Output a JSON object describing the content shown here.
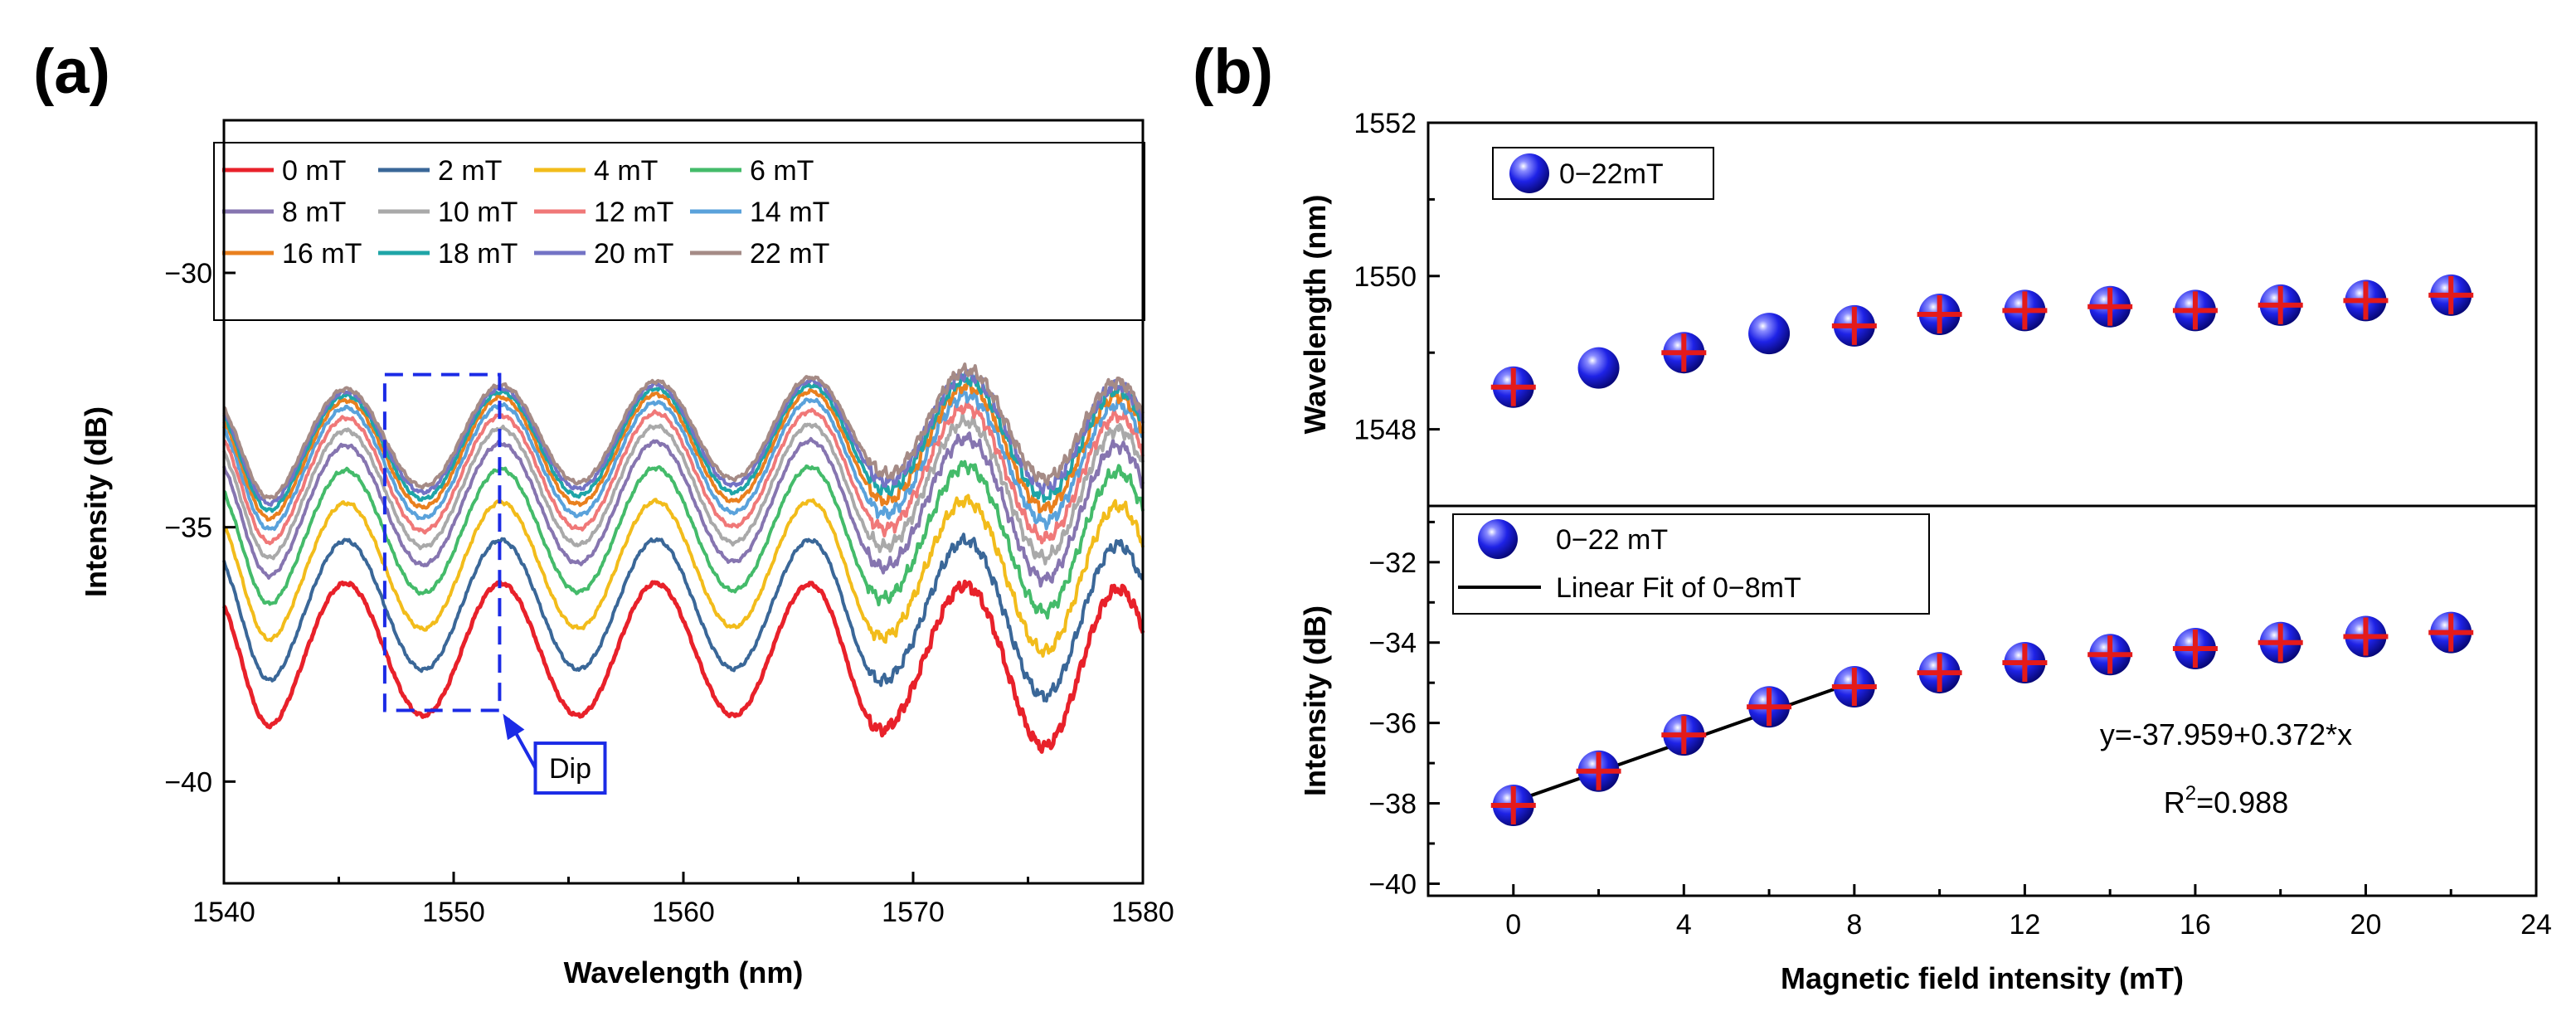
{
  "panel_a_label": "(a)",
  "panel_b_label": "(b)",
  "chart_data": [
    {
      "id": "a",
      "type": "line",
      "title": "",
      "xlabel": "Wavelength (nm)",
      "ylabel": "Intensity (dB)",
      "xlim": [
        1540,
        1580
      ],
      "ylim": [
        -42,
        -27
      ],
      "xticks": [
        1540,
        1550,
        1560,
        1570,
        1580
      ],
      "xtick_labels": [
        "1540",
        "1550",
        "1560",
        "1570",
        "1580"
      ],
      "yticks": [
        -40,
        -35,
        -30
      ],
      "ytick_labels": [
        "−40",
        "−35",
        "−30"
      ],
      "grid": false,
      "legend_position": "top",
      "dip_label": "Dip",
      "dip_box_x": [
        1547,
        1552
      ],
      "dip_box_y": [
        -38.6,
        -32
      ],
      "dip_arrow_to": [
        1552,
        -38.6
      ],
      "dip_label_at": [
        1555,
        -39.8
      ],
      "spectrum_model": {
        "x_range": [
          1540,
          1580
        ],
        "base_offset_0mT": -37.4,
        "dip_centers": [
          1541.6,
          1548.4,
          1555.0,
          1561.9,
          1568.7,
          1575.5
        ],
        "peak_centers": [
          1545.3,
          1551.8,
          1558.5,
          1565.3,
          1572.0,
          1578.8
        ]
      },
      "series": [
        {
          "name": "0 mT",
          "color": "#e8212a",
          "offset_db": 0.0
        },
        {
          "name": "2 mT",
          "color": "#3a6798",
          "offset_db": 0.9
        },
        {
          "name": "4 mT",
          "color": "#f2bc1b",
          "offset_db": 1.7
        },
        {
          "name": "6 mT",
          "color": "#44bb6a",
          "offset_db": 2.4
        },
        {
          "name": "8 mT",
          "color": "#8675b0",
          "offset_db": 2.95
        },
        {
          "name": "10 mT",
          "color": "#a9a9a9",
          "offset_db": 3.3
        },
        {
          "name": "12 mT",
          "color": "#f07878",
          "offset_db": 3.6
        },
        {
          "name": "14 mT",
          "color": "#5aa2db",
          "offset_db": 3.85
        },
        {
          "name": "16 mT",
          "color": "#e9801e",
          "offset_db": 4.05
        },
        {
          "name": "18 mT",
          "color": "#1ea5a7",
          "offset_db": 4.2
        },
        {
          "name": "20 mT",
          "color": "#7373c5",
          "offset_db": 4.32
        },
        {
          "name": "22 mT",
          "color": "#a58b86",
          "offset_db": 4.42
        }
      ]
    },
    {
      "id": "b-top",
      "type": "scatter",
      "title": "",
      "xlabel": "",
      "ylabel": "Wavelength (nm)",
      "xlim": [
        -2,
        24
      ],
      "ylim": [
        1547,
        1552
      ],
      "yticks": [
        1548,
        1550,
        1552
      ],
      "ytick_labels": [
        "1548",
        "1550",
        "1552"
      ],
      "legend_position": "top-left",
      "legend": [
        "0−22mT"
      ],
      "series": [
        {
          "name": "0−22mT",
          "color": "#1f1fe8",
          "x": [
            0,
            2,
            4,
            6,
            8,
            10,
            12,
            14,
            16,
            18,
            20,
            22
          ],
          "y": [
            1548.55,
            1548.8,
            1549.0,
            1549.25,
            1549.35,
            1549.5,
            1549.55,
            1549.6,
            1549.55,
            1549.62,
            1549.68,
            1549.75
          ],
          "error_bars": [
            true,
            false,
            true,
            false,
            true,
            true,
            true,
            true,
            true,
            true,
            true,
            true
          ]
        }
      ]
    },
    {
      "id": "b-bottom",
      "type": "scatter",
      "title": "",
      "xlabel": "Magnetic field intensity (mT)",
      "ylabel": "Intensity (dB)",
      "xlim": [
        -2,
        24
      ],
      "ylim": [
        -40.3,
        -30.6
      ],
      "xticks": [
        0,
        4,
        8,
        12,
        16,
        20,
        24
      ],
      "xtick_labels": [
        "0",
        "4",
        "8",
        "12",
        "16",
        "20",
        "24"
      ],
      "yticks": [
        -40,
        -38,
        -36,
        -34,
        -32
      ],
      "ytick_labels": [
        "−40",
        "−38",
        "−36",
        "−34",
        "−32"
      ],
      "legend_position": "top-left",
      "legend": [
        "0−22 mT",
        "Linear Fit of 0−8mT"
      ],
      "series": [
        {
          "name": "0−22 mT",
          "color": "#1f1fe8",
          "x": [
            0,
            2,
            4,
            6,
            8,
            10,
            12,
            14,
            16,
            18,
            20,
            22
          ],
          "y": [
            -38.05,
            -37.2,
            -36.3,
            -35.6,
            -35.1,
            -34.75,
            -34.5,
            -34.3,
            -34.15,
            -34.0,
            -33.85,
            -33.75
          ],
          "error_bars": [
            true,
            true,
            true,
            true,
            true,
            true,
            true,
            true,
            true,
            true,
            true,
            true
          ]
        }
      ],
      "fit": {
        "name": "Linear Fit of 0−8mT",
        "intercept": -37.959,
        "slope": 0.372,
        "x_range": [
          0,
          8
        ],
        "equation": "y=-37.959+0.372*x",
        "r2_prefix": "R",
        "r2_sup": "2",
        "r2_value": "=0.988"
      }
    }
  ]
}
